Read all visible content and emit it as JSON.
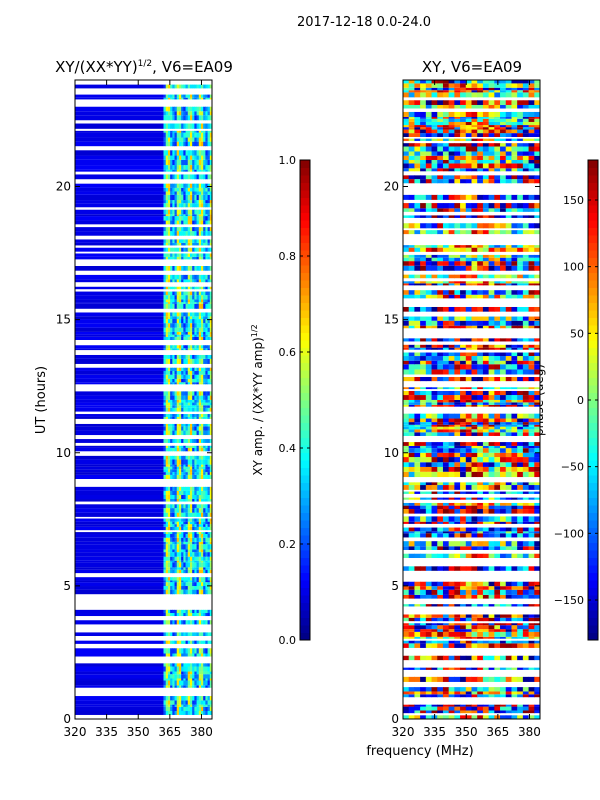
{
  "suptitle": "2017-12-18 0.0-24.0",
  "shared": {
    "xlabel": "frequency (MHz)",
    "ylabel": "UT (hours)"
  },
  "chart_data": [
    {
      "type": "heatmap",
      "title": "XY/(XX*YY)",
      "title_power": "1/2",
      "title_suffix": ", V6=EA09",
      "xlim": [
        320,
        385
      ],
      "ylim": [
        0,
        24
      ],
      "xticks": [
        320,
        335,
        350,
        365,
        380
      ],
      "yticks": [
        0,
        5,
        10,
        15,
        20
      ],
      "active_band_mhz": [
        362,
        385
      ],
      "colorbar": {
        "label": "XY amp. / (XX*YY amp)",
        "label_power": "1/2",
        "range": [
          0.0,
          1.0
        ],
        "ticks": [
          0.0,
          0.2,
          0.4,
          0.6,
          0.8,
          1.0
        ],
        "tick_labels": [
          "0.0",
          "0.2",
          "0.4",
          "0.6",
          "0.8",
          "1.0"
        ],
        "colormap": "jet"
      }
    },
    {
      "type": "heatmap",
      "title": "XY, V6=EA09",
      "xlim": [
        320,
        385
      ],
      "ylim": [
        0,
        24
      ],
      "xticks": [
        320,
        335,
        350,
        365,
        380
      ],
      "yticks": [
        0,
        5,
        10,
        15,
        20
      ],
      "colorbar": {
        "label": "phase (deg)",
        "range": [
          -180,
          180
        ],
        "ticks": [
          -150,
          -100,
          -50,
          0,
          50,
          100,
          150
        ],
        "tick_labels": [
          "−150",
          "−100",
          "−50",
          "0",
          "50",
          "100",
          "150"
        ],
        "colormap": "jet"
      }
    }
  ]
}
